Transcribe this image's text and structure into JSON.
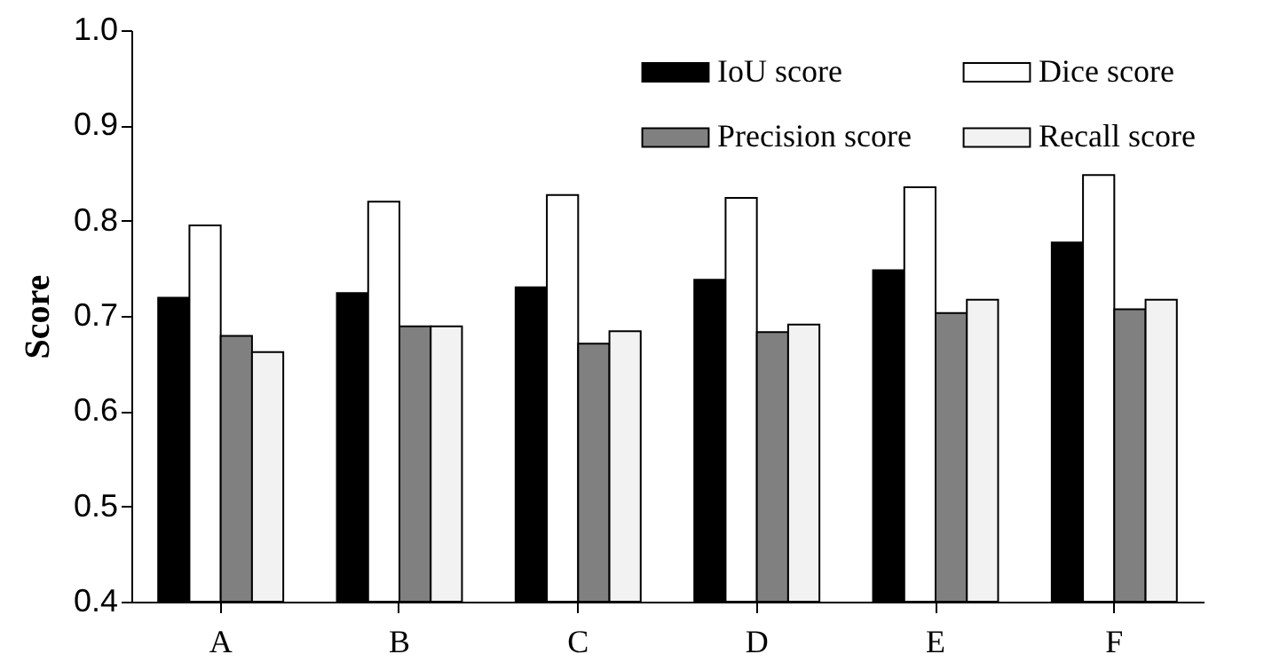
{
  "chart_data": {
    "type": "bar",
    "ylabel": "Score",
    "categories": [
      "A",
      "B",
      "C",
      "D",
      "E",
      "F"
    ],
    "series": [
      {
        "name": "IoU score",
        "color": "#000000",
        "values": [
          0.719,
          0.724,
          0.73,
          0.738,
          0.748,
          0.777
        ]
      },
      {
        "name": "Dice score",
        "color": "#ffffff",
        "values": [
          0.795,
          0.82,
          0.827,
          0.824,
          0.835,
          0.848
        ]
      },
      {
        "name": "Precision score",
        "color": "#808080",
        "values": [
          0.679,
          0.689,
          0.671,
          0.683,
          0.703,
          0.707
        ]
      },
      {
        "name": "Recall score",
        "color": "#f2f2f2",
        "values": [
          0.662,
          0.689,
          0.684,
          0.691,
          0.717,
          0.717
        ]
      }
    ],
    "ylim": [
      0.4,
      1.0
    ],
    "yticks": [
      0.4,
      0.5,
      0.6,
      0.7,
      0.8,
      0.9,
      {
        "value": 1.0,
        "label": "1.0"
      }
    ],
    "legend": "top right"
  }
}
